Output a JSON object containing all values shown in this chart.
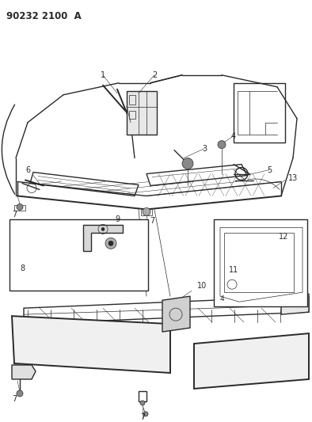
{
  "title": "90232 2100  A",
  "title_fontsize": 8.5,
  "bg_color": "#ffffff",
  "line_color": "#2a2a2a",
  "fig_width": 3.94,
  "fig_height": 5.33,
  "dpi": 100,
  "label_fontsize": 7,
  "label_fontsize_small": 6.5,
  "lw_main": 1.0,
  "lw_thin": 0.5,
  "lw_thick": 1.4
}
